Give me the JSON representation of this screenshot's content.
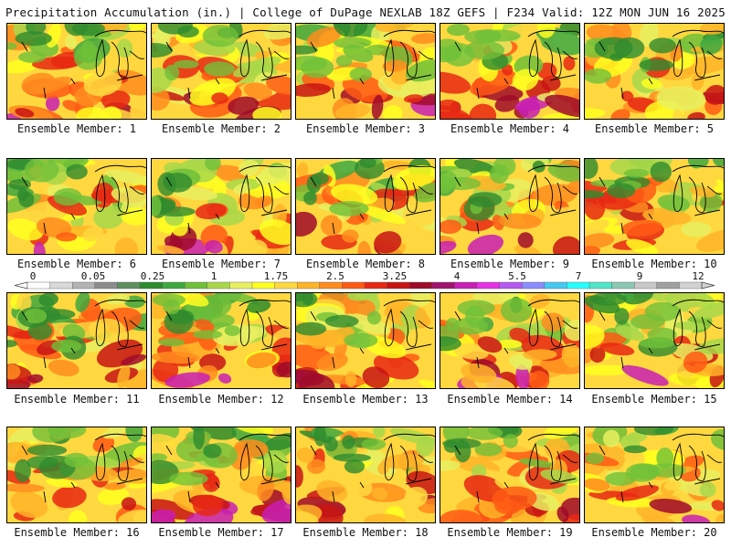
{
  "header": {
    "left_title": "Precipitation Accumulation (in.) | College of DuPage NEXLAB",
    "right_title": "18Z GEFS | F234 Valid: 12Z MON JUN 16 2025"
  },
  "panels": [
    {
      "label": "Ensemble Member: 1"
    },
    {
      "label": "Ensemble Member: 2"
    },
    {
      "label": "Ensemble Member: 3"
    },
    {
      "label": "Ensemble Member: 4"
    },
    {
      "label": "Ensemble Member: 5"
    },
    {
      "label": "Ensemble Member: 6"
    },
    {
      "label": "Ensemble Member: 7"
    },
    {
      "label": "Ensemble Member: 8"
    },
    {
      "label": "Ensemble Member: 9"
    },
    {
      "label": "Ensemble Member: 10"
    },
    {
      "label": "Ensemble Member: 11"
    },
    {
      "label": "Ensemble Member: 12"
    },
    {
      "label": "Ensemble Member: 13"
    },
    {
      "label": "Ensemble Member: 14"
    },
    {
      "label": "Ensemble Member: 15"
    },
    {
      "label": "Ensemble Member: 16"
    },
    {
      "label": "Ensemble Member: 17"
    },
    {
      "label": "Ensemble Member: 18"
    },
    {
      "label": "Ensemble Member: 19"
    },
    {
      "label": "Ensemble Member: 20"
    }
  ],
  "legend": {
    "tick_labels": [
      "0",
      "0.05",
      "0.25",
      "1",
      "1.75",
      "2.5",
      "3.25",
      "4",
      "5.5",
      "7",
      "9",
      "12"
    ],
    "colors": [
      "#ffffff",
      "#d9d9d9",
      "#b3b3b3",
      "#8c8c8c",
      "#5e8f5e",
      "#2e8b2e",
      "#3fa83f",
      "#70c03a",
      "#a8d84a",
      "#e8f060",
      "#ffff20",
      "#ffd840",
      "#ffb428",
      "#ff8c1e",
      "#ff5a14",
      "#e82814",
      "#c81414",
      "#a00a2a",
      "#a0146e",
      "#c81eb4",
      "#e632e6",
      "#b45af0",
      "#8c8cff",
      "#46c8f0",
      "#28ffff",
      "#50e6c8",
      "#8cc8b4",
      "#c8c8c8",
      "#a0a0a0",
      "#d2d2d2"
    ]
  }
}
